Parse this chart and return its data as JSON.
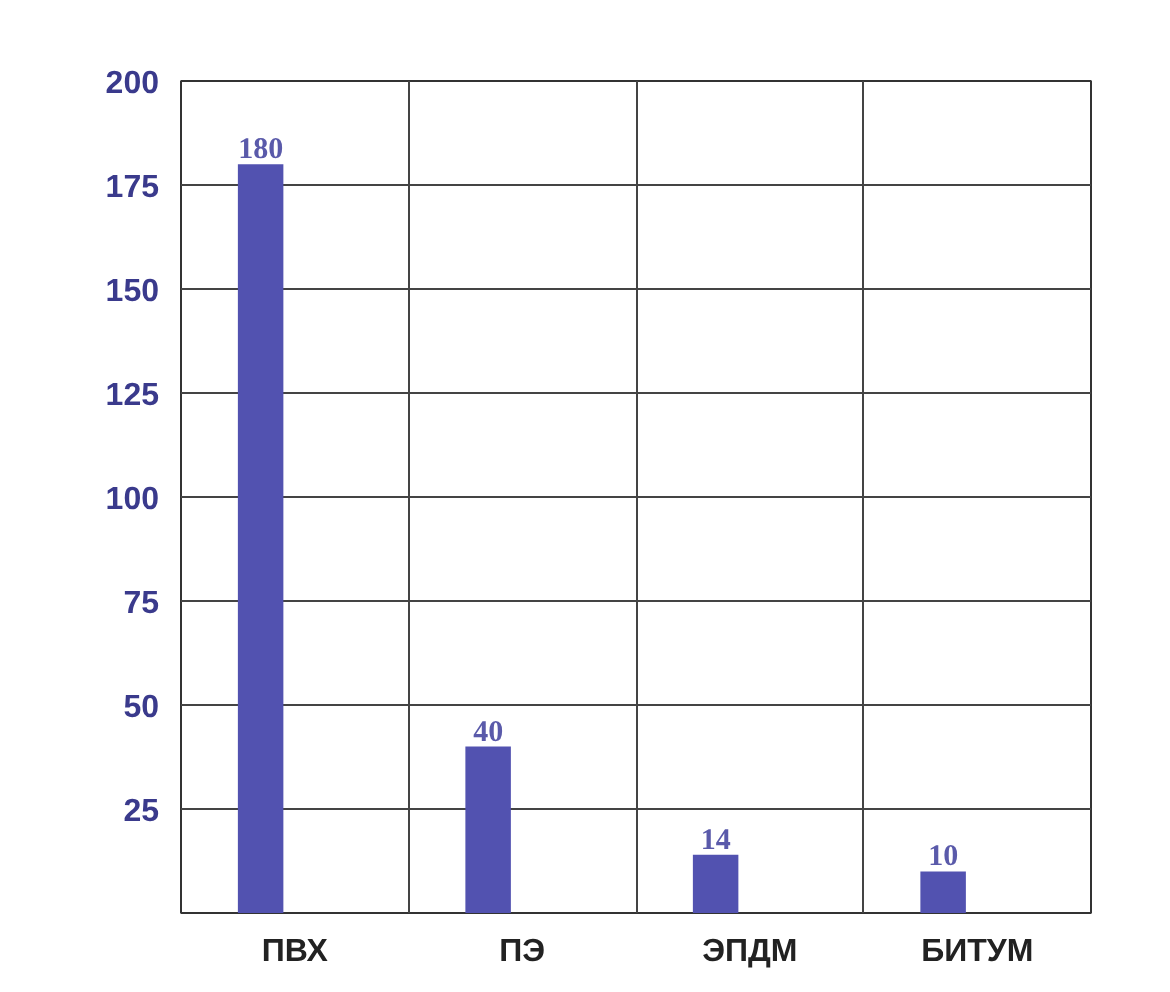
{
  "chart_data": {
    "type": "bar",
    "categories": [
      "ПВХ",
      "ПЭ",
      "ЭПДМ",
      "БИТУМ"
    ],
    "values": [
      180,
      40,
      14,
      10
    ],
    "color": "#5252b0",
    "ylim": [
      0,
      200
    ],
    "yticks": [
      25,
      50,
      75,
      100,
      125,
      150,
      175,
      200
    ],
    "grid": true,
    "data_labels": true
  }
}
